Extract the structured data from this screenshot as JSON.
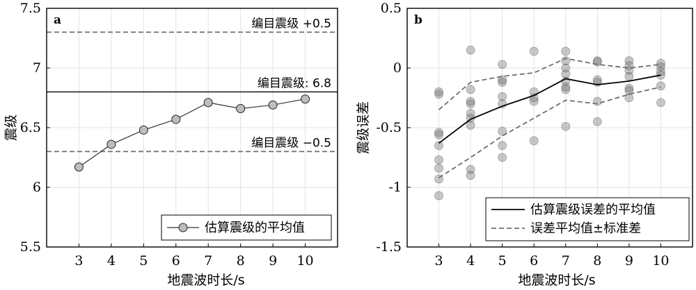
{
  "chart_data": [
    {
      "type": "line",
      "panel": "a",
      "x": [
        3,
        4,
        5,
        6,
        7,
        8,
        9,
        10
      ],
      "series": [
        {
          "name": "估算震级的平均值",
          "values": [
            6.17,
            6.36,
            6.48,
            6.57,
            6.71,
            6.66,
            6.69,
            6.74
          ]
        }
      ],
      "reference_lines": [
        {
          "value": 7.3,
          "label": "编目震级 +0.5",
          "style": "dashed"
        },
        {
          "value": 6.8,
          "label": "编目震级: 6.8",
          "style": "solid"
        },
        {
          "value": 6.3,
          "label": "编目震级 −0.5",
          "style": "dashed"
        }
      ],
      "xlabel": "地震波时长/s",
      "ylabel": "震级",
      "xlim": [
        2,
        11
      ],
      "ylim": [
        5.5,
        7.5
      ],
      "xticks": [
        "3",
        "4",
        "5",
        "6",
        "7",
        "8",
        "9",
        "10"
      ],
      "yticks": [
        "5.5",
        "6",
        "6.5",
        "7",
        "7.5"
      ],
      "grid": true,
      "legend": "bottom-right"
    },
    {
      "type": "line",
      "panel": "b",
      "x": [
        3,
        4,
        5,
        6,
        7,
        8,
        9,
        10
      ],
      "series": [
        {
          "name": "估算震级误差的平均值",
          "values": [
            -0.63,
            -0.43,
            -0.32,
            -0.23,
            -0.09,
            -0.14,
            -0.11,
            -0.06
          ]
        },
        {
          "name": "误差平均值±标准差",
          "values": [
            -0.35,
            -0.12,
            -0.07,
            -0.04,
            0.08,
            0.03,
            0.0,
            0.03
          ]
        },
        {
          "name": "误差平均值±标准差",
          "values": [
            -0.92,
            -0.75,
            -0.57,
            -0.42,
            -0.27,
            -0.3,
            -0.22,
            -0.16
          ]
        }
      ],
      "scatter_points": {
        "3": [
          -0.2,
          -0.22,
          -0.54,
          -0.56,
          -0.65,
          -0.77,
          -0.84,
          -0.93,
          -1.07
        ],
        "4": [
          0.15,
          -0.18,
          -0.28,
          -0.3,
          -0.38,
          -0.42,
          -0.48,
          -0.85,
          -0.9
        ],
        "5": [
          0.03,
          -0.1,
          -0.12,
          -0.24,
          -0.3,
          -0.53,
          -0.65,
          -0.75
        ],
        "6": [
          0.14,
          -0.2,
          -0.25,
          -0.28,
          -0.61
        ],
        "7": [
          0.14,
          0.06,
          0.0,
          -0.05,
          -0.11,
          -0.16,
          -0.18,
          -0.49
        ],
        "8": [
          0.06,
          0.05,
          -0.1,
          -0.12,
          -0.28,
          -0.45
        ],
        "9": [
          0.06,
          0.02,
          -0.02,
          -0.07,
          -0.17,
          -0.19,
          -0.25
        ],
        "10": [
          0.04,
          0.01,
          -0.03,
          -0.06,
          -0.15,
          -0.29
        ]
      },
      "xlabel": "地震波时长/s",
      "ylabel": "震级误差",
      "xlim": [
        2,
        11
      ],
      "ylim": [
        -1.5,
        0.5
      ],
      "xticks": [
        "3",
        "4",
        "5",
        "6",
        "7",
        "8",
        "9",
        "10"
      ],
      "yticks": [
        "-1.5",
        "-1",
        "-0.5",
        "0",
        "0.5"
      ],
      "grid": true,
      "legend": "bottom-right"
    }
  ]
}
